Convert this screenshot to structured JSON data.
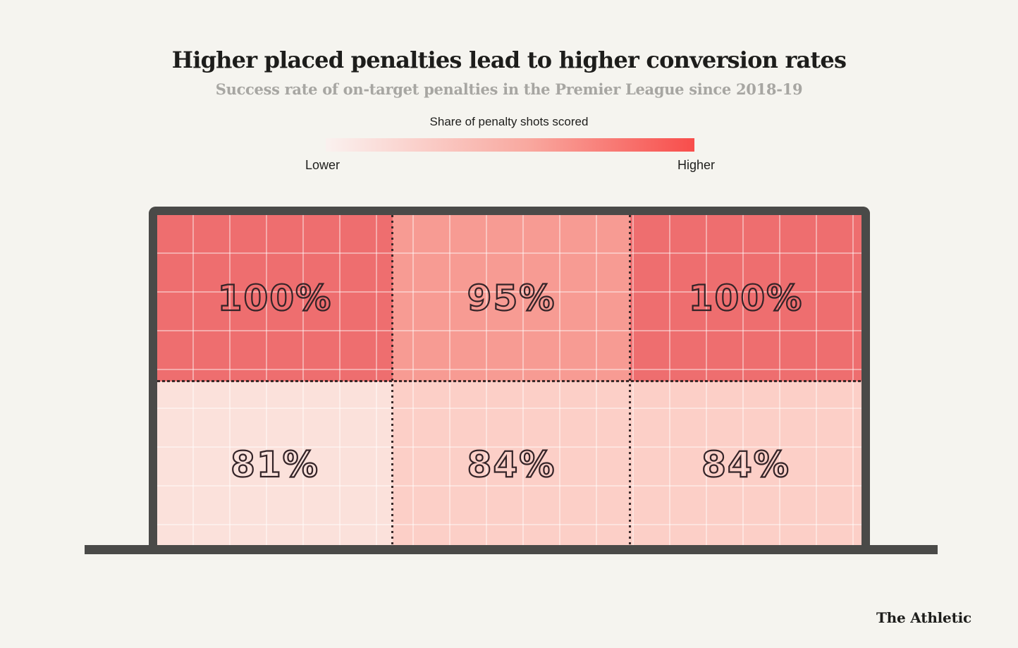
{
  "page": {
    "background_color": "#f5f4ef",
    "frame_color": "#4a4a48"
  },
  "header": {
    "title": "Higher placed penalties lead to higher conversion rates",
    "subtitle": "Success rate of on-target penalties in the Premier League since 2018-19"
  },
  "legend": {
    "title": "Share of penalty shots scored",
    "low_label": "Lower",
    "high_label": "Higher",
    "gradient_start": "#faf1ef",
    "gradient_mid": "#f9a89f",
    "gradient_end": "#f84d4b"
  },
  "chart_data": {
    "type": "heatmap",
    "title": "Higher placed penalties lead to higher conversion rates",
    "subtitle": "Success rate of on-target penalties in the Premier League since 2018-19",
    "legend_title": "Share of penalty shots scored",
    "legend_scale": [
      "Lower",
      "Higher"
    ],
    "layout": "goal mouth split into 2 rows x 3 columns, dotted separators, dark goal frame and goal line",
    "rows": [
      "high",
      "low"
    ],
    "columns": [
      "left",
      "centre",
      "right"
    ],
    "series": [
      {
        "name": "high",
        "values": [
          100,
          95,
          100
        ]
      },
      {
        "name": "low",
        "values": [
          81,
          84,
          84
        ]
      }
    ],
    "cells": [
      {
        "row": "high",
        "col": "left",
        "value": "100%",
        "pct": 100,
        "color": "#ee6e6f"
      },
      {
        "row": "high",
        "col": "centre",
        "value": "95%",
        "pct": 95,
        "color": "#f79b93"
      },
      {
        "row": "high",
        "col": "right",
        "value": "100%",
        "pct": 100,
        "color": "#ee6e6f"
      },
      {
        "row": "low",
        "col": "left",
        "value": "81%",
        "pct": 81,
        "color": "#fbe1db"
      },
      {
        "row": "low",
        "col": "centre",
        "value": "84%",
        "pct": 84,
        "color": "#fccfc7"
      },
      {
        "row": "low",
        "col": "right",
        "value": "84%",
        "pct": 84,
        "color": "#fccfc7"
      }
    ]
  },
  "footer": {
    "brand": "The Athletic"
  }
}
